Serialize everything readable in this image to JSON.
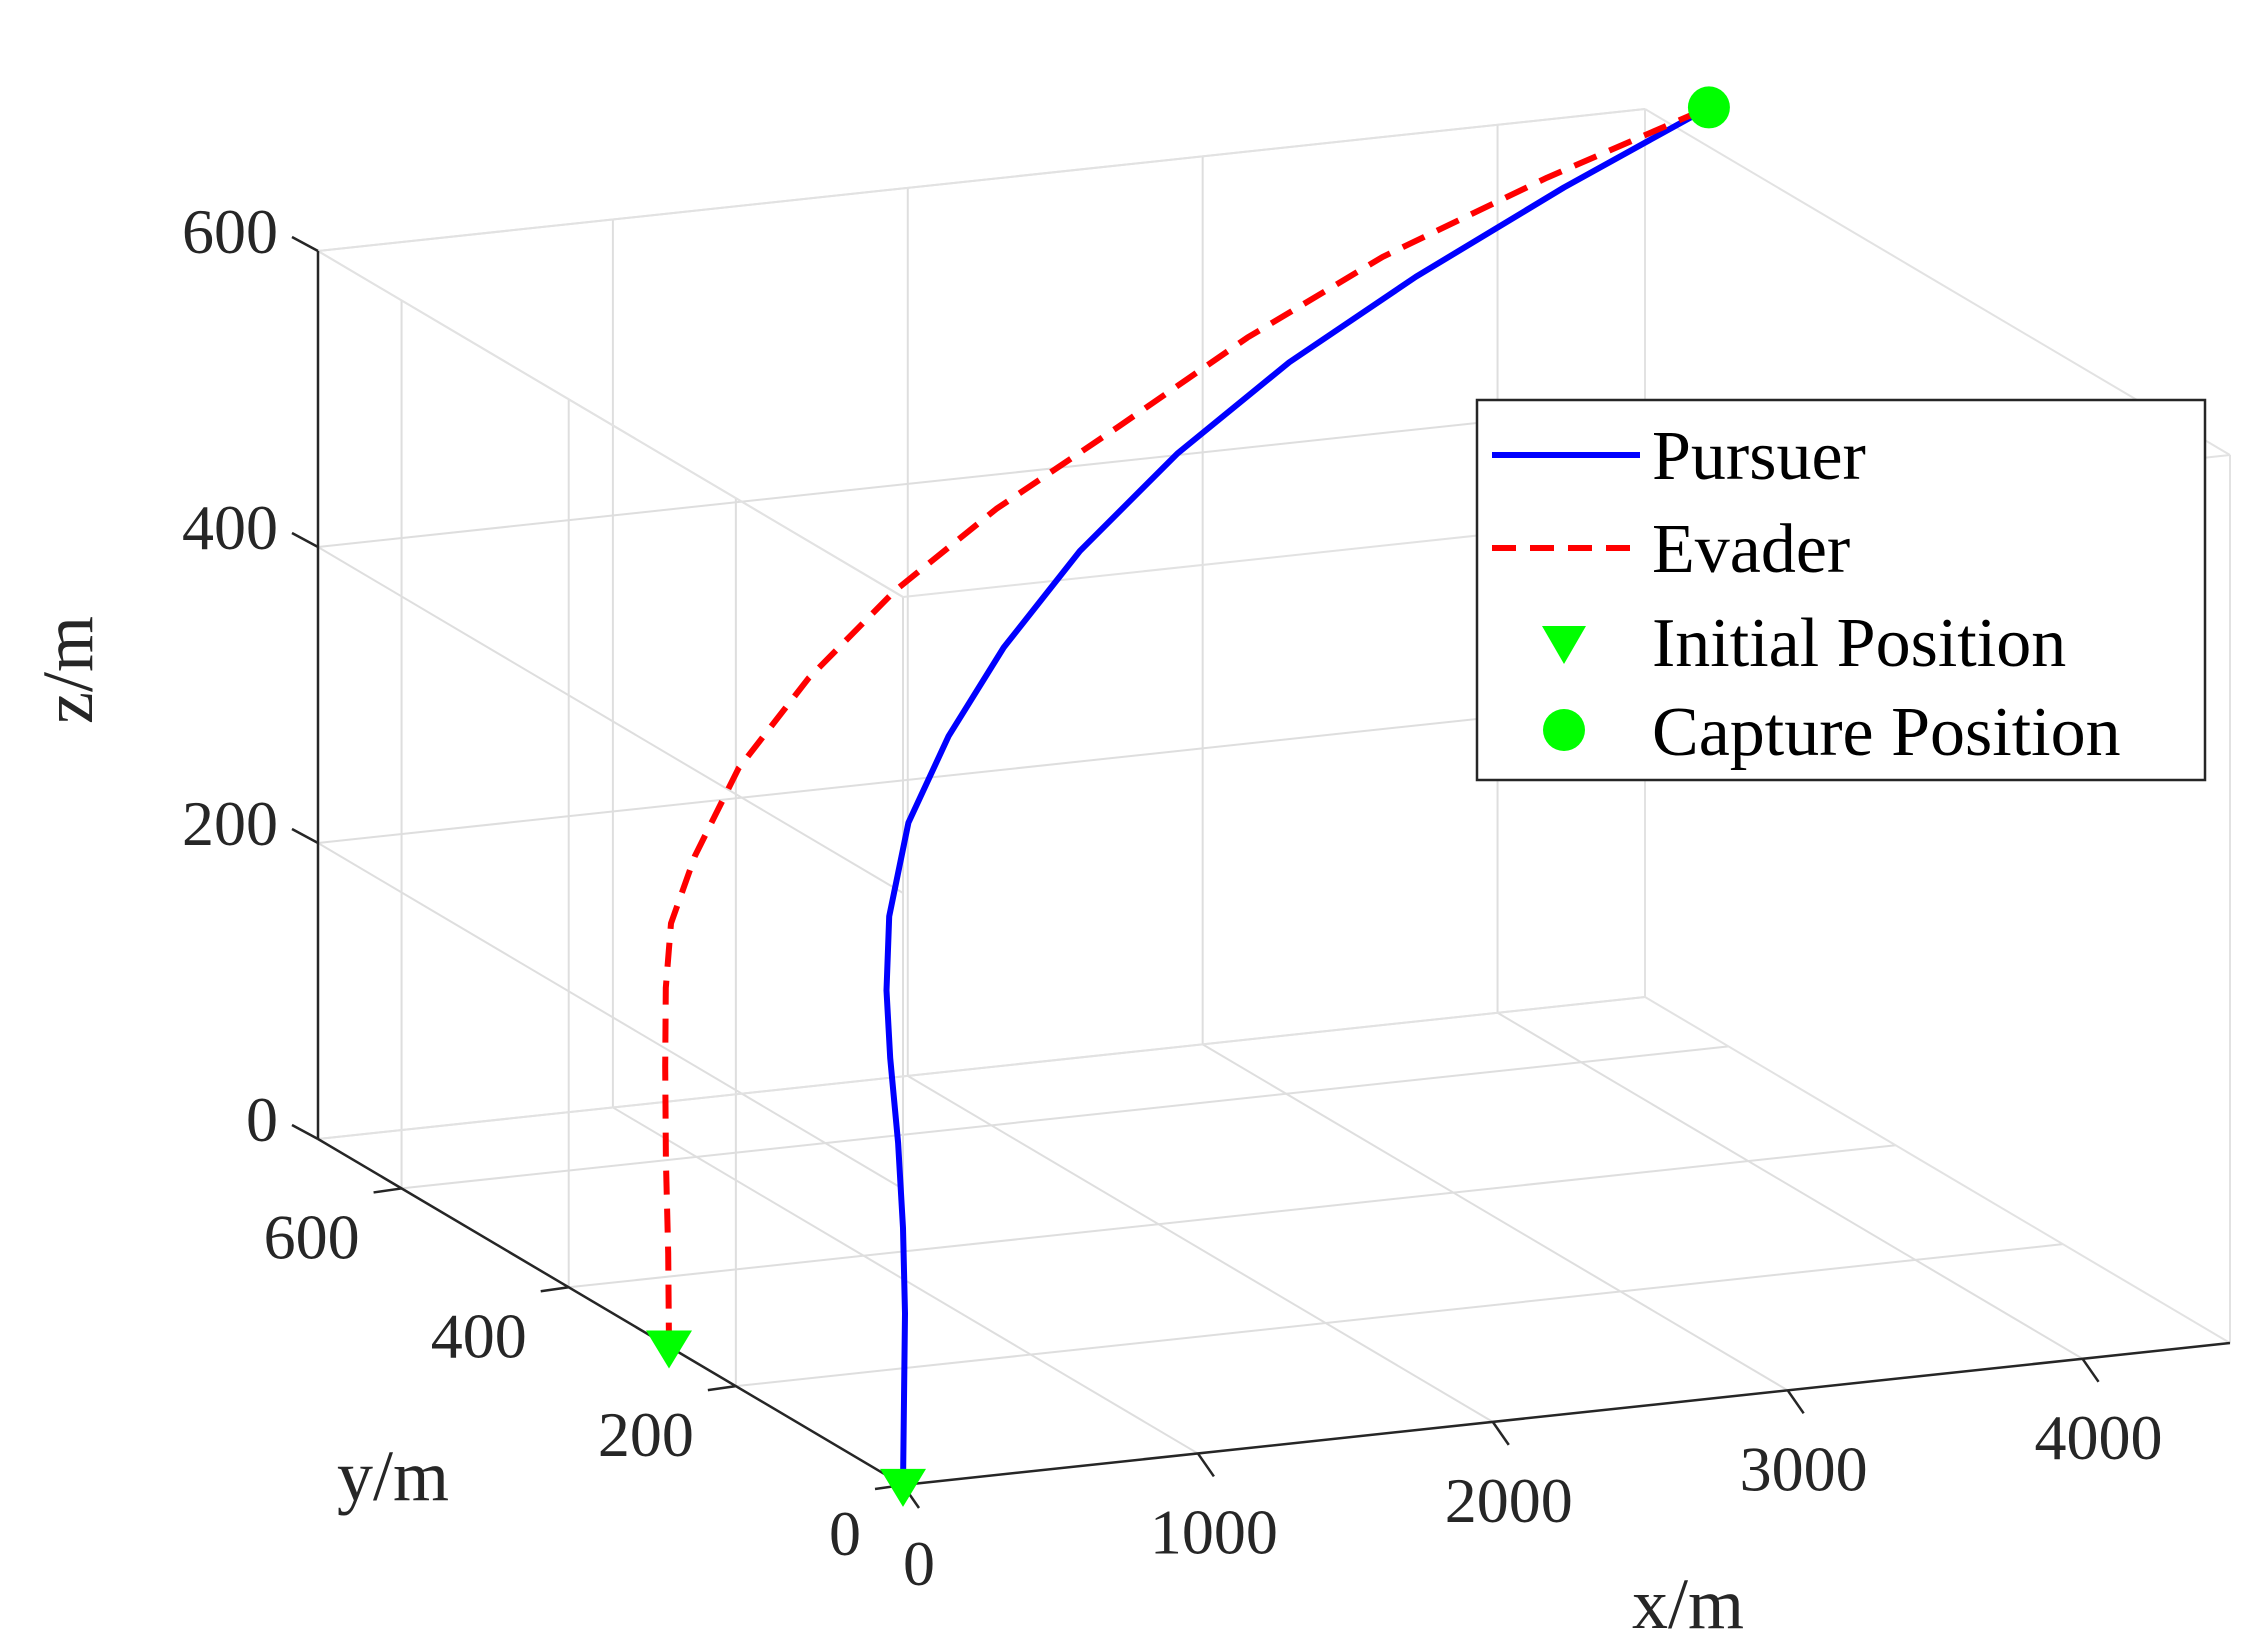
{
  "chart_data": {
    "type": "line3d",
    "xlabel": "x/m",
    "ylabel": "y/m",
    "zlabel": "z/m",
    "xlim": [
      0,
      4500
    ],
    "ylim": [
      0,
      700
    ],
    "zlim": [
      0,
      600
    ],
    "xticks": [
      "0",
      "1000",
      "2000",
      "3000",
      "4000"
    ],
    "yticks": [
      "0",
      "200",
      "400",
      "600"
    ],
    "zticks": [
      "0",
      "200",
      "400",
      "600"
    ],
    "grid": true,
    "box": true,
    "legend_position": "top-right",
    "series": [
      {
        "name": "Pursuer",
        "color": "#0000ff",
        "style": "solid",
        "points": [
          [
            0,
            0,
            0
          ],
          [
            60,
            20,
            50
          ],
          [
            120,
            40,
            100
          ],
          [
            170,
            60,
            150
          ],
          [
            210,
            80,
            200
          ],
          [
            240,
            100,
            250
          ],
          [
            270,
            115,
            290
          ],
          [
            350,
            140,
            330
          ],
          [
            500,
            170,
            380
          ],
          [
            750,
            210,
            420
          ],
          [
            1050,
            250,
            460
          ],
          [
            1450,
            300,
            500
          ],
          [
            1950,
            360,
            535
          ],
          [
            2500,
            420,
            565
          ],
          [
            3100,
            480,
            590
          ],
          [
            3800,
            550,
            612
          ],
          [
            4490,
            620,
            628
          ]
        ]
      },
      {
        "name": "Evader",
        "color": "#ff0000",
        "style": "dashed",
        "points": [
          [
            0,
            280,
            0
          ],
          [
            20,
            288,
            60
          ],
          [
            35,
            296,
            120
          ],
          [
            55,
            304,
            180
          ],
          [
            80,
            312,
            230
          ],
          [
            120,
            320,
            270
          ],
          [
            230,
            330,
            310
          ],
          [
            420,
            345,
            360
          ],
          [
            700,
            360,
            410
          ],
          [
            1050,
            380,
            455
          ],
          [
            1450,
            400,
            495
          ],
          [
            1950,
            430,
            530
          ],
          [
            2500,
            470,
            565
          ],
          [
            3100,
            520,
            590
          ],
          [
            3800,
            570,
            612
          ],
          [
            4490,
            620,
            628
          ]
        ]
      },
      {
        "name": "Initial Position",
        "color": "#00ff00",
        "marker": "triangle-down",
        "points": [
          [
            0,
            0,
            0
          ],
          [
            0,
            280,
            0
          ]
        ]
      },
      {
        "name": "Capture Position",
        "color": "#00ff00",
        "marker": "circle",
        "points": [
          [
            4490,
            620,
            628
          ]
        ]
      }
    ]
  }
}
